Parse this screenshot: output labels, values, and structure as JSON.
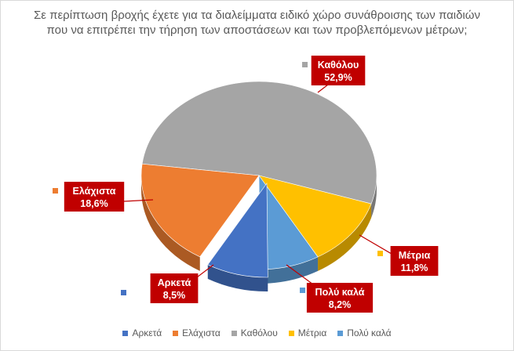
{
  "chart_data": {
    "type": "pie",
    "title": "Σε περίπτωση βροχής έχετε για τα διαλείμματα ειδικό χώρο συνάθροισης των παιδιών που να επιτρέπει την τήρηση των αποστάσεων και των προβλεπόμενων μέτρων;",
    "categories": [
      "Αρκετά",
      "Ελάχιστα",
      "Καθόλου",
      "Μέτρια",
      "Πολύ καλά"
    ],
    "values": [
      8.5,
      18.6,
      52.9,
      11.8,
      8.2
    ],
    "value_labels": [
      "8,5%",
      "18,6%",
      "52,9%",
      "11,8%",
      "8,2%"
    ],
    "colors": [
      "#4472c4",
      "#ed7d31",
      "#a5a5a5",
      "#ffc000",
      "#5b9bd5"
    ],
    "label_style": {
      "background": "#c00000",
      "text": "#ffffff"
    },
    "legend_position": "bottom",
    "style": "3d"
  }
}
